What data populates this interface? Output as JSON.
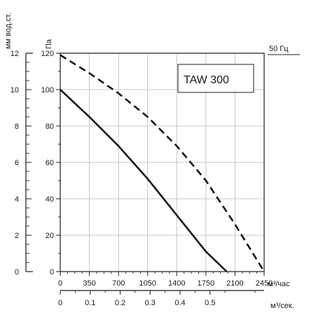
{
  "chart_data": {
    "type": "line",
    "model_label": "TAW 300",
    "frequency_label": "50 Гц",
    "y_left_label": "мм вод.ст.",
    "y_right_label": "Па",
    "x_bottom_unit": "м³/час",
    "x_second_unit": "м³/сек.",
    "y_pa_range": [
      0,
      120
    ],
    "y_pa_ticks": [
      "0",
      "20",
      "40",
      "60",
      "80",
      "100",
      "120"
    ],
    "y_mm_range": [
      0,
      12
    ],
    "y_mm_ticks": [
      "0",
      "2",
      "4",
      "6",
      "8",
      "10",
      "12"
    ],
    "x_m3h_range": [
      0,
      2450
    ],
    "x_m3h_ticks": [
      "0",
      "350",
      "700",
      "1050",
      "1400",
      "1750",
      "2100",
      "2450"
    ],
    "x_m3s_ticks": [
      "0",
      "0.1",
      "0.2",
      "0.3",
      "0.4",
      "0.5"
    ],
    "grid": true,
    "series": [
      {
        "style": "solid",
        "x": [
          0,
          350,
          700,
          1050,
          1400,
          1750,
          2000
        ],
        "y": [
          100,
          85,
          69,
          51,
          31,
          11,
          0
        ]
      },
      {
        "style": "dashed",
        "x": [
          0,
          350,
          700,
          1050,
          1400,
          1750,
          2100,
          2450
        ],
        "y": [
          119,
          109,
          98,
          85,
          69,
          50,
          26,
          0
        ]
      }
    ]
  }
}
